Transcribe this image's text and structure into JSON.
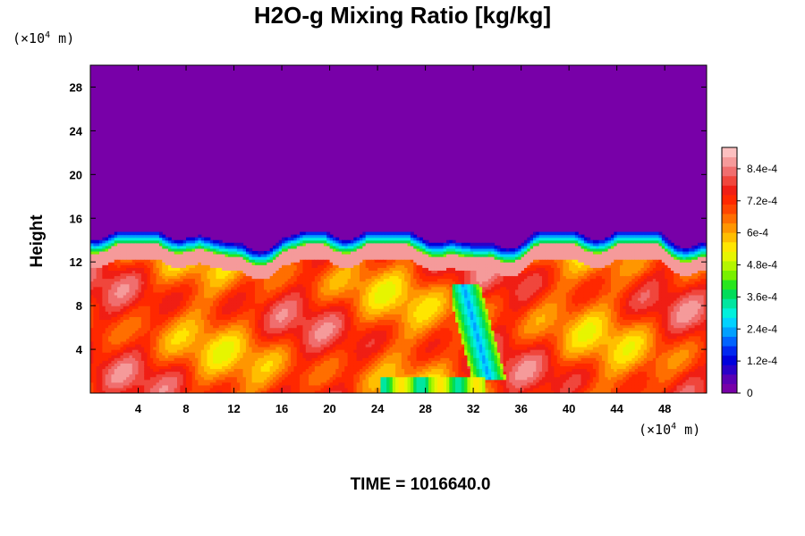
{
  "chart_data": {
    "type": "heatmap",
    "title": "H2O-g Mixing Ratio [kg/kg]",
    "ylabel": "Height",
    "x_unit": {
      "prefix": "(×10",
      "exp": "4",
      "suffix": " m)"
    },
    "y_unit": {
      "prefix": "(×10",
      "exp": "4",
      "suffix": " m)"
    },
    "footer": "TIME = 1016640.0",
    "xlim": [
      0,
      51.5
    ],
    "ylim": [
      0,
      30
    ],
    "x_ticks": [
      "4",
      "8",
      "12",
      "16",
      "20",
      "24",
      "28",
      "32",
      "36",
      "40",
      "44",
      "48"
    ],
    "y_ticks": [
      "4",
      "8",
      "12",
      "16",
      "20",
      "24",
      "28"
    ],
    "colorbar": {
      "min": 0,
      "max": 0.00092,
      "tick_values": [
        0,
        0.00012,
        0.00024,
        0.00036,
        0.00048,
        0.0006,
        0.00072,
        0.00084
      ],
      "tick_labels": [
        "0",
        "1.2e-4",
        "2.4e-4",
        "3.6e-4",
        "4.8e-4",
        "6e-4",
        "7.2e-4",
        "8.4e-4"
      ],
      "colors": [
        "#7800a8",
        "#5a00b4",
        "#2a00c8",
        "#0000dc",
        "#0028f0",
        "#0064ff",
        "#00a0ff",
        "#00d2ff",
        "#00f0dc",
        "#00e6a0",
        "#00dc5a",
        "#28e61e",
        "#78f000",
        "#b4f500",
        "#e6f500",
        "#ffe600",
        "#ffbe00",
        "#ff9600",
        "#ff6e00",
        "#ff4600",
        "#ff2800",
        "#f01e14",
        "#f0463c",
        "#f06e6e",
        "#f59a9a",
        "#fcc0c0"
      ]
    },
    "interface_height": 13.5,
    "upper_layer_value": 0
  }
}
